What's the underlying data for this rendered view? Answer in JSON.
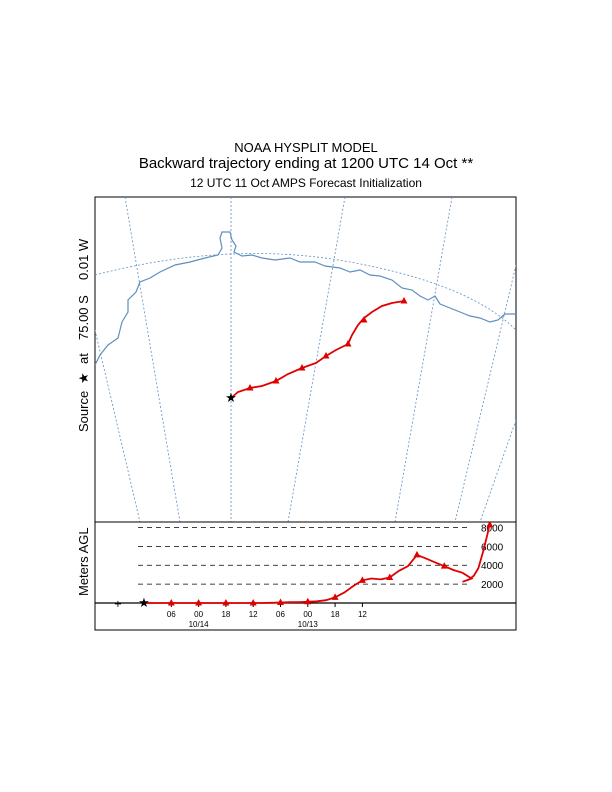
{
  "titles": {
    "line1": "NOAA HYSPLIT MODEL",
    "line2": "Backward trajectory ending at 1200 UTC 14 Oct **",
    "line3": "12 UTC 11 Oct    AMPS  Forecast Initialization"
  },
  "source_label": {
    "prefix": "Source",
    "star": "★",
    "at": "at",
    "lat": "75.00 S",
    "lon": "0.01 W"
  },
  "colors": {
    "trajectory": "#e00000",
    "map_lines": "#5f8fbf",
    "frame": "#000000"
  },
  "chart_data": {
    "type": "line",
    "series": [
      {
        "values": [
          0,
          0,
          0,
          0,
          0,
          0,
          0,
          0,
          0,
          0,
          0,
          0,
          0,
          0,
          20,
          50,
          80,
          100,
          130,
          180,
          300,
          600,
          1100,
          1800,
          2400,
          2600,
          2500,
          2700,
          3400,
          3900,
          5100,
          4700,
          4300,
          3900,
          3500,
          3200,
          2600,
          2200,
          2400,
          2600,
          2800,
          3200,
          4500,
          6200,
          8500
        ],
        "hours_back": [
          0,
          2,
          4,
          6,
          8,
          10,
          12,
          14,
          16,
          18,
          20,
          22,
          24,
          26,
          28,
          30,
          32,
          34,
          36,
          38,
          40,
          42,
          44,
          46,
          48,
          50,
          52,
          54,
          56,
          58,
          60,
          62,
          64,
          66,
          68,
          70,
          72,
          72,
          64,
          66,
          68,
          70,
          71,
          71.5,
          72
        ]
      }
    ],
    "ylabel": "Meters AGL",
    "yticks": [
      "2000",
      "4000",
      "6000",
      "8000"
    ],
    "ytick_values": [
      2000,
      4000,
      6000,
      8000
    ],
    "xticks": [
      "06",
      "00",
      "18",
      "12",
      "06",
      "00",
      "18",
      "12"
    ],
    "xtick_hours_back": [
      6,
      12,
      18,
      24,
      30,
      36,
      42,
      48
    ],
    "date_labels": [
      "10/14",
      "10/13"
    ],
    "date_label_hours_back": [
      12,
      36
    ],
    "hourly_markers": [
      0,
      6,
      12,
      18,
      24,
      30,
      36,
      42,
      48,
      54,
      60,
      66,
      72
    ],
    "trajectory_path": "backward from source (75.00 S, 0.01 W) toward coast"
  }
}
